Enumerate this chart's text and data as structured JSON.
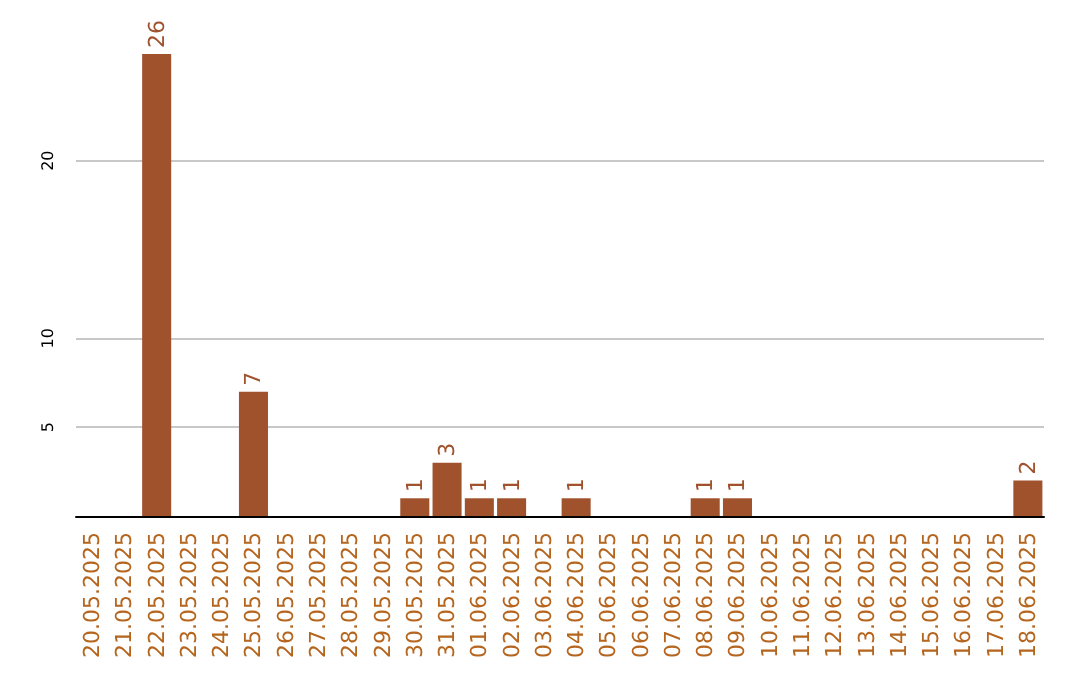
{
  "chart_data": {
    "type": "bar",
    "categories": [
      "20.05.2025",
      "21.05.2025",
      "22.05.2025",
      "23.05.2025",
      "24.05.2025",
      "25.05.2025",
      "26.05.2025",
      "27.05.2025",
      "28.05.2025",
      "29.05.2025",
      "30.05.2025",
      "31.05.2025",
      "01.06.2025",
      "02.06.2025",
      "03.06.2025",
      "04.06.2025",
      "05.06.2025",
      "06.06.2025",
      "07.06.2025",
      "08.06.2025",
      "09.06.2025",
      "10.06.2025",
      "11.06.2025",
      "12.06.2025",
      "13.06.2025",
      "14.06.2025",
      "15.06.2025",
      "16.06.2025",
      "17.06.2025",
      "18.06.2025"
    ],
    "values": [
      0,
      0,
      26,
      0,
      0,
      7,
      0,
      0,
      0,
      0,
      1,
      3,
      1,
      1,
      0,
      1,
      0,
      0,
      0,
      1,
      1,
      0,
      0,
      0,
      0,
      0,
      0,
      0,
      0,
      2
    ],
    "value_labels": [
      null,
      null,
      "26",
      null,
      null,
      "7",
      null,
      null,
      null,
      null,
      "1",
      "3",
      "1",
      "1",
      null,
      "1",
      null,
      null,
      null,
      "1",
      "1",
      null,
      null,
      null,
      null,
      null,
      null,
      null,
      null,
      "2"
    ],
    "color": "#a0522d",
    "ylim": [
      0,
      26
    ],
    "yticks": [
      5,
      10,
      20
    ],
    "grid": "y"
  }
}
